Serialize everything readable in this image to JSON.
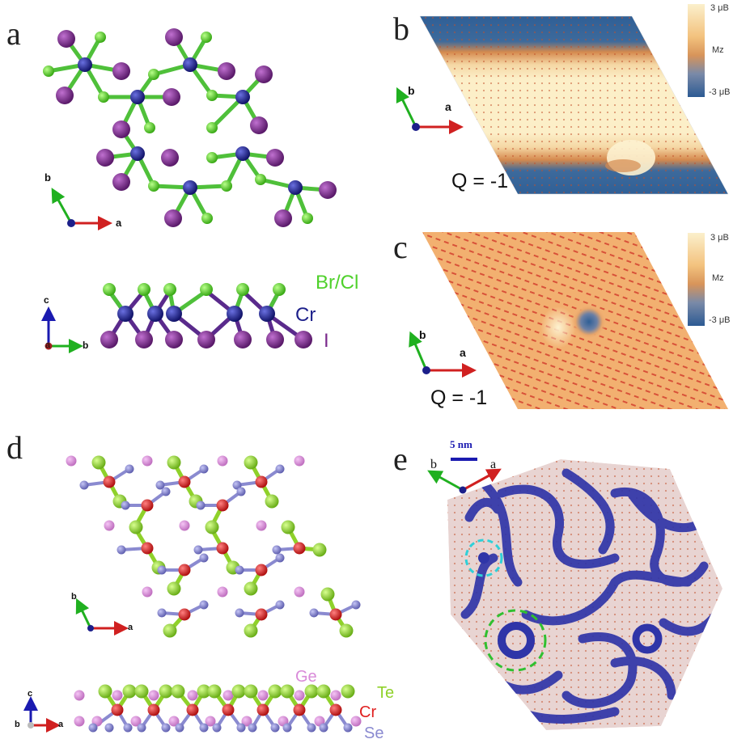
{
  "panels": {
    "a": {
      "label": "a",
      "axes_top": {
        "b": "b",
        "a": "a"
      },
      "axes_side": {
        "c": "c",
        "a": "a",
        "b": "b"
      },
      "legend": {
        "brcl": "Br/Cl",
        "cr": "Cr",
        "i": "I"
      },
      "colors": {
        "cr": "#1c1f8a",
        "brcl": "#4fd12b",
        "i": "#7a2a8c"
      }
    },
    "b": {
      "label": "b",
      "axes": {
        "b": "b",
        "a": "a"
      },
      "q_text": "Q = -1",
      "colorbar": {
        "top": "3 μB",
        "mid": "Mz",
        "bottom": "-3 μB"
      }
    },
    "c": {
      "label": "c",
      "axes": {
        "b": "b",
        "a": "a"
      },
      "q_text": "Q = -1",
      "colorbar": {
        "top": "3 μB",
        "mid": "Mz",
        "bottom": "-3 μB"
      }
    },
    "d": {
      "label": "d",
      "axes_top": {
        "b": "b",
        "a": "a"
      },
      "axes_side": {
        "c": "c",
        "b": "b",
        "a": "a"
      },
      "legend": {
        "ge": "Ge",
        "te": "Te",
        "cr": "Cr",
        "se": "Se"
      },
      "colors": {
        "cr": "#e02020",
        "te": "#8fd12a",
        "ge": "#d98ad9",
        "se": "#8a8ad0"
      }
    },
    "e": {
      "label": "e",
      "scalebar": "5 nm",
      "axes": {
        "b": "b",
        "a": "a"
      }
    }
  }
}
